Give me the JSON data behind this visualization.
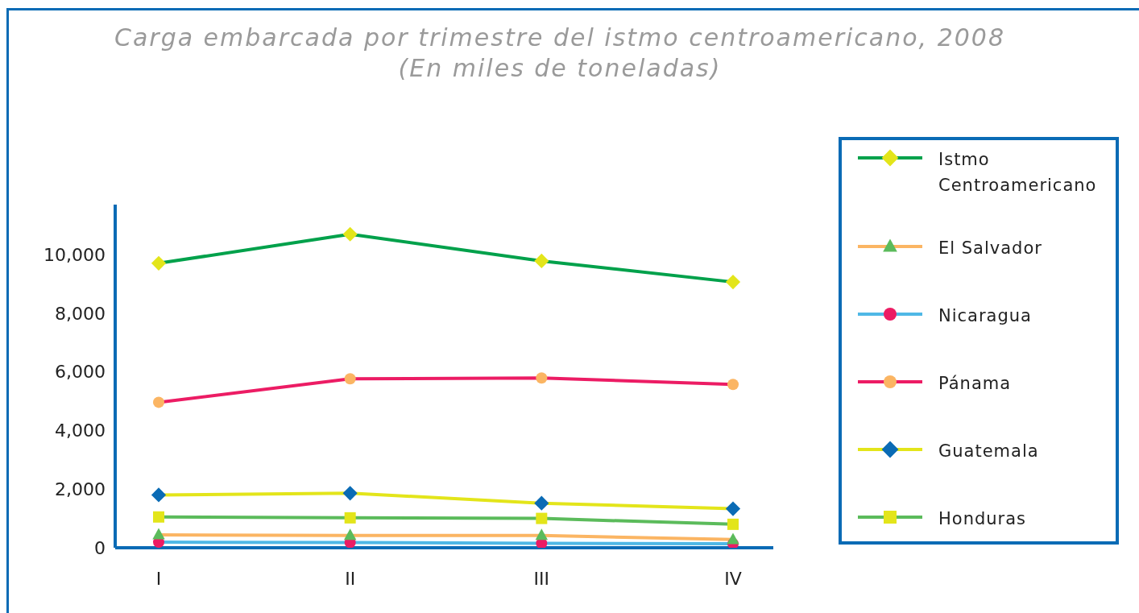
{
  "chart_data": {
    "type": "line",
    "title": "Carga embarcada por trimestre del istmo centroamericano, 2008",
    "subtitle": "(En miles de toneladas)",
    "categories": [
      "I",
      "II",
      "III",
      "IV"
    ],
    "series": [
      {
        "name": "Istmo Centroamericano",
        "color": "#00a14b",
        "marker": "diamond",
        "colors": [
          "#e3e51a",
          "#e3e51a",
          "#e3e51a",
          "#e3e51a"
        ],
        "values": [
          9700,
          10690,
          9780,
          9060
        ]
      },
      {
        "name": "El Salvador",
        "color": "#fbb563",
        "marker": "triangle",
        "colors": [
          "#5bbb5b",
          "#5bbb5b",
          "#5bbb5b",
          "#5bbb5b"
        ],
        "values": [
          440,
          420,
          420,
          280
        ]
      },
      {
        "name": "Nicaragua",
        "color": "#4fb8e6",
        "marker": "circle",
        "colors": [
          "#ec1c64",
          "#ec1c64",
          "#ec1c64",
          "#ec1c64"
        ],
        "values": [
          190,
          180,
          150,
          140
        ]
      },
      {
        "name": "Pánama",
        "color": "#ec1c64",
        "marker": "circle",
        "colors": [
          "#fbb563",
          "#fbb563",
          "#fbb563",
          "#fbb563"
        ],
        "values": [
          4960,
          5760,
          5790,
          5570
        ]
      },
      {
        "name": "Guatemala",
        "color": "#e3e51a",
        "marker": "diamond",
        "colors": [
          "#0a6bb5",
          "#0a6bb5",
          "#0a6bb5",
          "#0a6bb5"
        ],
        "values": [
          1800,
          1860,
          1520,
          1330
        ]
      },
      {
        "name": "Honduras",
        "color": "#5bbb5b",
        "marker": "square",
        "colors": [
          "#e3e51a",
          "#e3e51a",
          "#e3e51a",
          "#e3e51a"
        ],
        "values": [
          1050,
          1020,
          1000,
          800
        ]
      }
    ],
    "ylim": [
      0,
      11700
    ],
    "yticks": [
      0,
      {
        "value": 2000,
        "label": "2,000"
      },
      {
        "value": 4000,
        "label": "4,000"
      },
      {
        "value": 6000,
        "label": "6,000"
      },
      {
        "value": 8000,
        "label": "8,000"
      },
      {
        "value": 10000,
        "label": "10,000"
      }
    ],
    "grid": false,
    "legend": "right",
    "line_style": "solid"
  }
}
